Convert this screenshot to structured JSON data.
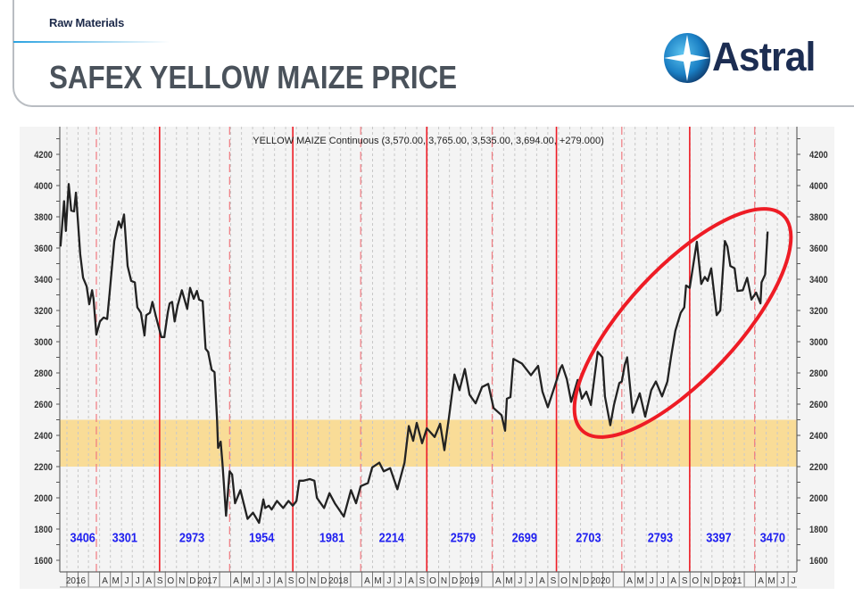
{
  "header": {
    "section": "Raw Materials",
    "title": "SAFEX YELLOW MAIZE PRICE",
    "logo_text": "Astral"
  },
  "colors": {
    "price_line": "#222222",
    "band": "#f9dc97",
    "red_line": "#ee1c25",
    "label_blue": "#1f1ff0",
    "background": "#f4f4f4",
    "navy": "#1c2d52"
  },
  "chart_data": {
    "type": "line",
    "title": "YELLOW MAIZE Continuous (3,570.00, 3,765.00, 3,535.00, 3,694.00, +279.000)",
    "xlim": [
      "2015-12-14",
      "2021-07-25"
    ],
    "ylim": [
      1550,
      4330
    ],
    "y_ticks": [
      1600,
      1800,
      2000,
      2200,
      2400,
      2600,
      2800,
      3000,
      3200,
      3400,
      3600,
      3800,
      4000,
      4200
    ],
    "y_axis_sides": "both",
    "grid": "vertical monthly dotted",
    "x_ticks": [
      {
        "date": "2016-01",
        "label": "2016"
      },
      {
        "date": "2016-04",
        "label": "A"
      },
      {
        "date": "2016-05",
        "label": "M"
      },
      {
        "date": "2016-06",
        "label": "J"
      },
      {
        "date": "2016-07",
        "label": "J"
      },
      {
        "date": "2016-08",
        "label": "A"
      },
      {
        "date": "2016-09",
        "label": "S"
      },
      {
        "date": "2016-10",
        "label": "O"
      },
      {
        "date": "2016-11",
        "label": "N"
      },
      {
        "date": "2016-12",
        "label": "D"
      },
      {
        "date": "2017-01",
        "label": "2017"
      },
      {
        "date": "2017-04",
        "label": "A"
      },
      {
        "date": "2017-05",
        "label": "M"
      },
      {
        "date": "2017-06",
        "label": "J"
      },
      {
        "date": "2017-07",
        "label": "J"
      },
      {
        "date": "2017-08",
        "label": "A"
      },
      {
        "date": "2017-09",
        "label": "S"
      },
      {
        "date": "2017-10",
        "label": "O"
      },
      {
        "date": "2017-11",
        "label": "N"
      },
      {
        "date": "2017-12",
        "label": "D"
      },
      {
        "date": "2018-01",
        "label": "2018"
      },
      {
        "date": "2018-04",
        "label": "A"
      },
      {
        "date": "2018-05",
        "label": "M"
      },
      {
        "date": "2018-06",
        "label": "J"
      },
      {
        "date": "2018-07",
        "label": "J"
      },
      {
        "date": "2018-08",
        "label": "A"
      },
      {
        "date": "2018-09",
        "label": "S"
      },
      {
        "date": "2018-10",
        "label": "O"
      },
      {
        "date": "2018-11",
        "label": "N"
      },
      {
        "date": "2018-12",
        "label": "D"
      },
      {
        "date": "2019-01",
        "label": "2019"
      },
      {
        "date": "2019-04",
        "label": "A"
      },
      {
        "date": "2019-05",
        "label": "M"
      },
      {
        "date": "2019-06",
        "label": "J"
      },
      {
        "date": "2019-07",
        "label": "J"
      },
      {
        "date": "2019-08",
        "label": "A"
      },
      {
        "date": "2019-09",
        "label": "S"
      },
      {
        "date": "2019-10",
        "label": "O"
      },
      {
        "date": "2019-11",
        "label": "N"
      },
      {
        "date": "2019-12",
        "label": "D"
      },
      {
        "date": "2020-01",
        "label": "2020"
      },
      {
        "date": "2020-04",
        "label": "A"
      },
      {
        "date": "2020-05",
        "label": "M"
      },
      {
        "date": "2020-06",
        "label": "J"
      },
      {
        "date": "2020-07",
        "label": "J"
      },
      {
        "date": "2020-08",
        "label": "A"
      },
      {
        "date": "2020-09",
        "label": "S"
      },
      {
        "date": "2020-10",
        "label": "O"
      },
      {
        "date": "2020-11",
        "label": "N"
      },
      {
        "date": "2020-12",
        "label": "D"
      },
      {
        "date": "2021-01",
        "label": "2021"
      },
      {
        "date": "2021-04",
        "label": "A"
      },
      {
        "date": "2021-05",
        "label": "M"
      },
      {
        "date": "2021-06",
        "label": "J"
      },
      {
        "date": "2021-07",
        "label": "J"
      }
    ],
    "highlight_band": [
      2200,
      2500
    ],
    "solid_lines": [
      "2016-09-15",
      "2017-09-21",
      "2018-09-29",
      "2019-09-25",
      "2020-09-30"
    ],
    "dashed_lines": [
      "2016-03-23",
      "2017-03-29",
      "2018-03-29",
      "2019-03-30",
      "2020-03-25",
      "2021-03-30"
    ],
    "period_labels": [
      {
        "label": "3406",
        "date": "2016-02-14",
        "y": 1745
      },
      {
        "label": "3301",
        "date": "2016-06-10",
        "y": 1745
      },
      {
        "label": "2973",
        "date": "2016-12-14",
        "y": 1745
      },
      {
        "label": "1954",
        "date": "2017-06-26",
        "y": 1745
      },
      {
        "label": "1981",
        "date": "2018-01-08",
        "y": 1745
      },
      {
        "label": "2214",
        "date": "2018-06-23",
        "y": 1745
      },
      {
        "label": "2579",
        "date": "2019-01-08",
        "y": 1745
      },
      {
        "label": "2699",
        "date": "2019-06-28",
        "y": 1745
      },
      {
        "label": "2703",
        "date": "2019-12-23",
        "y": 1745
      },
      {
        "label": "2793",
        "date": "2020-07-10",
        "y": 1745
      },
      {
        "label": "3397",
        "date": "2020-12-20",
        "y": 1745
      },
      {
        "label": "3470",
        "date": "2021-05-19",
        "y": 1745
      }
    ],
    "highlight_ellipse": "red circle around 2020-2021 rally",
    "series": [
      {
        "values": [
          [
            "2015-12-14",
            3610
          ],
          [
            "2015-12-24",
            3900
          ],
          [
            "2015-12-29",
            3710
          ],
          [
            "2016-01-06",
            4010
          ],
          [
            "2016-01-13",
            3840
          ],
          [
            "2016-01-21",
            3835
          ],
          [
            "2016-01-26",
            3955
          ],
          [
            "2016-02-07",
            3560
          ],
          [
            "2016-02-15",
            3410
          ],
          [
            "2016-02-25",
            3355
          ],
          [
            "2016-03-03",
            3240
          ],
          [
            "2016-03-11",
            3330
          ],
          [
            "2016-03-15",
            3275
          ],
          [
            "2016-03-23",
            3045
          ],
          [
            "2016-04-02",
            3130
          ],
          [
            "2016-04-12",
            3155
          ],
          [
            "2016-04-22",
            3145
          ],
          [
            "2016-04-29",
            3315
          ],
          [
            "2016-05-12",
            3645
          ],
          [
            "2016-05-24",
            3770
          ],
          [
            "2016-05-31",
            3730
          ],
          [
            "2016-06-08",
            3815
          ],
          [
            "2016-06-18",
            3485
          ],
          [
            "2016-06-28",
            3390
          ],
          [
            "2016-07-08",
            3380
          ],
          [
            "2016-07-15",
            3220
          ],
          [
            "2016-07-25",
            3185
          ],
          [
            "2016-08-04",
            3040
          ],
          [
            "2016-08-09",
            3170
          ],
          [
            "2016-08-19",
            3185
          ],
          [
            "2016-08-26",
            3255
          ],
          [
            "2016-09-05",
            3160
          ],
          [
            "2016-09-20",
            3030
          ],
          [
            "2016-09-28",
            3030
          ],
          [
            "2016-10-08",
            3190
          ],
          [
            "2016-10-13",
            3245
          ],
          [
            "2016-10-20",
            3255
          ],
          [
            "2016-10-27",
            3130
          ],
          [
            "2016-11-04",
            3230
          ],
          [
            "2016-11-16",
            3330
          ],
          [
            "2016-12-01",
            3210
          ],
          [
            "2016-12-09",
            3345
          ],
          [
            "2016-12-19",
            3275
          ],
          [
            "2016-12-28",
            3325
          ],
          [
            "2017-01-03",
            3270
          ],
          [
            "2017-01-13",
            3260
          ],
          [
            "2017-01-21",
            2955
          ],
          [
            "2017-01-28",
            2935
          ],
          [
            "2017-02-07",
            2820
          ],
          [
            "2017-02-15",
            2805
          ],
          [
            "2017-02-22",
            2505
          ],
          [
            "2017-02-25",
            2320
          ],
          [
            "2017-03-04",
            2360
          ],
          [
            "2017-03-09",
            2220
          ],
          [
            "2017-03-19",
            1885
          ],
          [
            "2017-03-29",
            2170
          ],
          [
            "2017-04-05",
            2150
          ],
          [
            "2017-04-13",
            1965
          ],
          [
            "2017-04-28",
            2050
          ],
          [
            "2017-05-18",
            1865
          ],
          [
            "2017-06-02",
            1905
          ],
          [
            "2017-06-19",
            1840
          ],
          [
            "2017-07-01",
            1990
          ],
          [
            "2017-07-06",
            1935
          ],
          [
            "2017-07-16",
            1950
          ],
          [
            "2017-07-24",
            1925
          ],
          [
            "2017-08-08",
            1980
          ],
          [
            "2017-08-25",
            1935
          ],
          [
            "2017-09-09",
            1980
          ],
          [
            "2017-09-21",
            1950
          ],
          [
            "2017-10-01",
            1980
          ],
          [
            "2017-10-09",
            2110
          ],
          [
            "2017-10-21",
            2110
          ],
          [
            "2017-11-07",
            2120
          ],
          [
            "2017-11-20",
            2110
          ],
          [
            "2017-11-27",
            2000
          ],
          [
            "2017-12-17",
            1935
          ],
          [
            "2018-01-01",
            2030
          ],
          [
            "2018-01-16",
            1965
          ],
          [
            "2018-02-10",
            1880
          ],
          [
            "2018-03-02",
            2050
          ],
          [
            "2018-03-16",
            1965
          ],
          [
            "2018-03-29",
            2075
          ],
          [
            "2018-04-18",
            2095
          ],
          [
            "2018-04-30",
            2195
          ],
          [
            "2018-05-20",
            2225
          ],
          [
            "2018-06-01",
            2170
          ],
          [
            "2018-06-19",
            2190
          ],
          [
            "2018-07-09",
            2055
          ],
          [
            "2018-07-29",
            2225
          ],
          [
            "2018-08-10",
            2460
          ],
          [
            "2018-08-22",
            2365
          ],
          [
            "2018-09-01",
            2480
          ],
          [
            "2018-09-16",
            2350
          ],
          [
            "2018-09-29",
            2445
          ],
          [
            "2018-10-21",
            2390
          ],
          [
            "2018-11-05",
            2475
          ],
          [
            "2018-11-17",
            2305
          ],
          [
            "2018-11-30",
            2520
          ],
          [
            "2018-12-15",
            2790
          ],
          [
            "2018-12-29",
            2690
          ],
          [
            "2019-01-13",
            2825
          ],
          [
            "2019-01-26",
            2660
          ],
          [
            "2019-02-12",
            2605
          ],
          [
            "2019-03-02",
            2710
          ],
          [
            "2019-03-19",
            2730
          ],
          [
            "2019-04-03",
            2575
          ],
          [
            "2019-04-25",
            2530
          ],
          [
            "2019-05-05",
            2430
          ],
          [
            "2019-05-10",
            2635
          ],
          [
            "2019-05-20",
            2645
          ],
          [
            "2019-05-28",
            2890
          ],
          [
            "2019-06-21",
            2860
          ],
          [
            "2019-07-16",
            2785
          ],
          [
            "2019-08-05",
            2845
          ],
          [
            "2019-08-17",
            2680
          ],
          [
            "2019-09-01",
            2580
          ],
          [
            "2019-09-21",
            2720
          ],
          [
            "2019-10-06",
            2830
          ],
          [
            "2019-10-11",
            2850
          ],
          [
            "2019-10-24",
            2760
          ],
          [
            "2019-11-05",
            2615
          ],
          [
            "2019-11-23",
            2755
          ],
          [
            "2019-12-05",
            2635
          ],
          [
            "2019-12-17",
            2680
          ],
          [
            "2019-12-30",
            2595
          ],
          [
            "2020-01-18",
            2935
          ],
          [
            "2020-01-31",
            2900
          ],
          [
            "2020-02-07",
            2650
          ],
          [
            "2020-02-22",
            2465
          ],
          [
            "2020-03-03",
            2595
          ],
          [
            "2020-03-18",
            2735
          ],
          [
            "2020-03-25",
            2745
          ],
          [
            "2020-04-02",
            2850
          ],
          [
            "2020-04-09",
            2900
          ],
          [
            "2020-04-24",
            2545
          ],
          [
            "2020-05-14",
            2670
          ],
          [
            "2020-05-29",
            2520
          ],
          [
            "2020-06-15",
            2690
          ],
          [
            "2020-06-28",
            2745
          ],
          [
            "2020-07-15",
            2650
          ],
          [
            "2020-07-30",
            2745
          ],
          [
            "2020-08-09",
            2900
          ],
          [
            "2020-08-21",
            3070
          ],
          [
            "2020-09-05",
            3185
          ],
          [
            "2020-09-15",
            3220
          ],
          [
            "2020-09-20",
            3360
          ],
          [
            "2020-09-30",
            3345
          ],
          [
            "2020-10-20",
            3640
          ],
          [
            "2020-11-01",
            3370
          ],
          [
            "2020-11-11",
            3415
          ],
          [
            "2020-11-19",
            3390
          ],
          [
            "2020-11-29",
            3470
          ],
          [
            "2020-12-14",
            3170
          ],
          [
            "2020-12-24",
            3200
          ],
          [
            "2021-01-06",
            3645
          ],
          [
            "2021-01-13",
            3610
          ],
          [
            "2021-01-21",
            3485
          ],
          [
            "2021-02-02",
            3470
          ],
          [
            "2021-02-10",
            3325
          ],
          [
            "2021-02-25",
            3330
          ],
          [
            "2021-03-09",
            3410
          ],
          [
            "2021-03-21",
            3270
          ],
          [
            "2021-04-03",
            3315
          ],
          [
            "2021-04-15",
            3245
          ],
          [
            "2021-04-18",
            3380
          ],
          [
            "2021-04-28",
            3430
          ],
          [
            "2021-05-05",
            3705
          ]
        ]
      }
    ]
  }
}
